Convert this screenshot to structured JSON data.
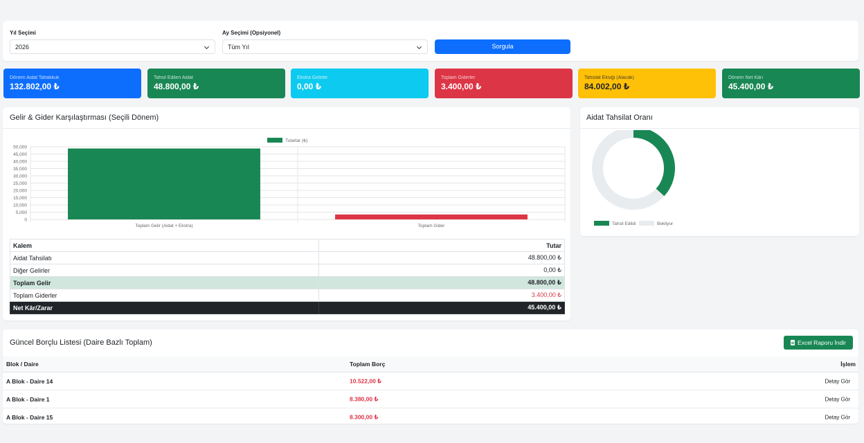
{
  "filters": {
    "year_label": "Yıl Seçimi",
    "year_value": "2026",
    "month_label": "Ay Seçimi (Opsiyonel)",
    "month_value": "Tüm Yıl",
    "submit_label": "Sorgula"
  },
  "stats": [
    {
      "label": "Dönem Aidat Tahakkuk",
      "value": "132.802,00 ₺",
      "color": "#0d6efd"
    },
    {
      "label": "Tahsil Edilen Aidat",
      "value": "48.800,00 ₺",
      "color": "#198754"
    },
    {
      "label": "Ekstra Gelirler",
      "value": "0,00 ₺",
      "color": "#0dcaf0"
    },
    {
      "label": "Toplam Giderler",
      "value": "3.400,00 ₺",
      "color": "#dc3545"
    },
    {
      "label": "Tahsilat Eksiği (Alacak)",
      "value": "84.002,00 ₺",
      "color": "#ffc107"
    },
    {
      "label": "Dönem Net Kârı",
      "value": "45.400,00 ₺",
      "color": "#198754"
    }
  ],
  "income_chart": {
    "title": "Gelir & Gider Karşılaştırması (Seçili Dönem)"
  },
  "chart_data": [
    {
      "type": "bar",
      "legend": [
        "Tutarlar (₺)"
      ],
      "legend_position": "top",
      "categories": [
        "Toplam Gelir (Aidat + Ekstra)",
        "Toplam Gider"
      ],
      "series": [
        {
          "name": "Tutarlar (₺)",
          "values": [
            48800,
            3400
          ],
          "colors": [
            "#198754",
            "#dc3545"
          ]
        }
      ],
      "yticks": [
        "0",
        "5,000",
        "10,000",
        "15,000",
        "20,000",
        "25,000",
        "30,000",
        "35,000",
        "40,000",
        "45,000",
        "50,000"
      ],
      "ylim": [
        0,
        50000
      ],
      "grid": true
    },
    {
      "type": "pie",
      "title": "Aidat Tahsilat Oranı",
      "legend_position": "bottom",
      "labels": [
        "Tahsil Edildi",
        "Bekliyor"
      ],
      "values": [
        48800,
        84002
      ],
      "colors": [
        "#198754",
        "#e9ecef"
      ]
    }
  ],
  "summary_table": {
    "headers": [
      "Kalem",
      "Tutar"
    ],
    "rows": [
      {
        "label": "Aidat Tahsilatı",
        "value": "48.800,00 ₺"
      },
      {
        "label": "Diğer Gelirler",
        "value": "0,00 ₺"
      },
      {
        "label": "Toplam Gelir",
        "value": "48.800,00 ₺"
      },
      {
        "label": "Toplam Giderler",
        "value": "3.400,00 ₺"
      },
      {
        "label": "Net Kâr/Zarar",
        "value": "45.400,00 ₺"
      }
    ]
  },
  "donut": {
    "title": "Aidat Tahsilat Oranı"
  },
  "debtors": {
    "title": "Güncel Borçlu Listesi (Daire Bazlı Toplam)",
    "export_label": "Excel Raporu İndir",
    "headers": [
      "Blok / Daire",
      "Toplam Borç",
      "İşlem"
    ],
    "rows": [
      {
        "unit": "A Blok - Daire 14",
        "debt": "10.522,00 ₺",
        "action": "Detay Gör"
      },
      {
        "unit": "A Blok - Daire 1",
        "debt": "8.380,00 ₺",
        "action": "Detay Gör"
      },
      {
        "unit": "A Blok - Daire 15",
        "debt": "8.300,00 ₺",
        "action": "Detay Gör"
      }
    ]
  }
}
